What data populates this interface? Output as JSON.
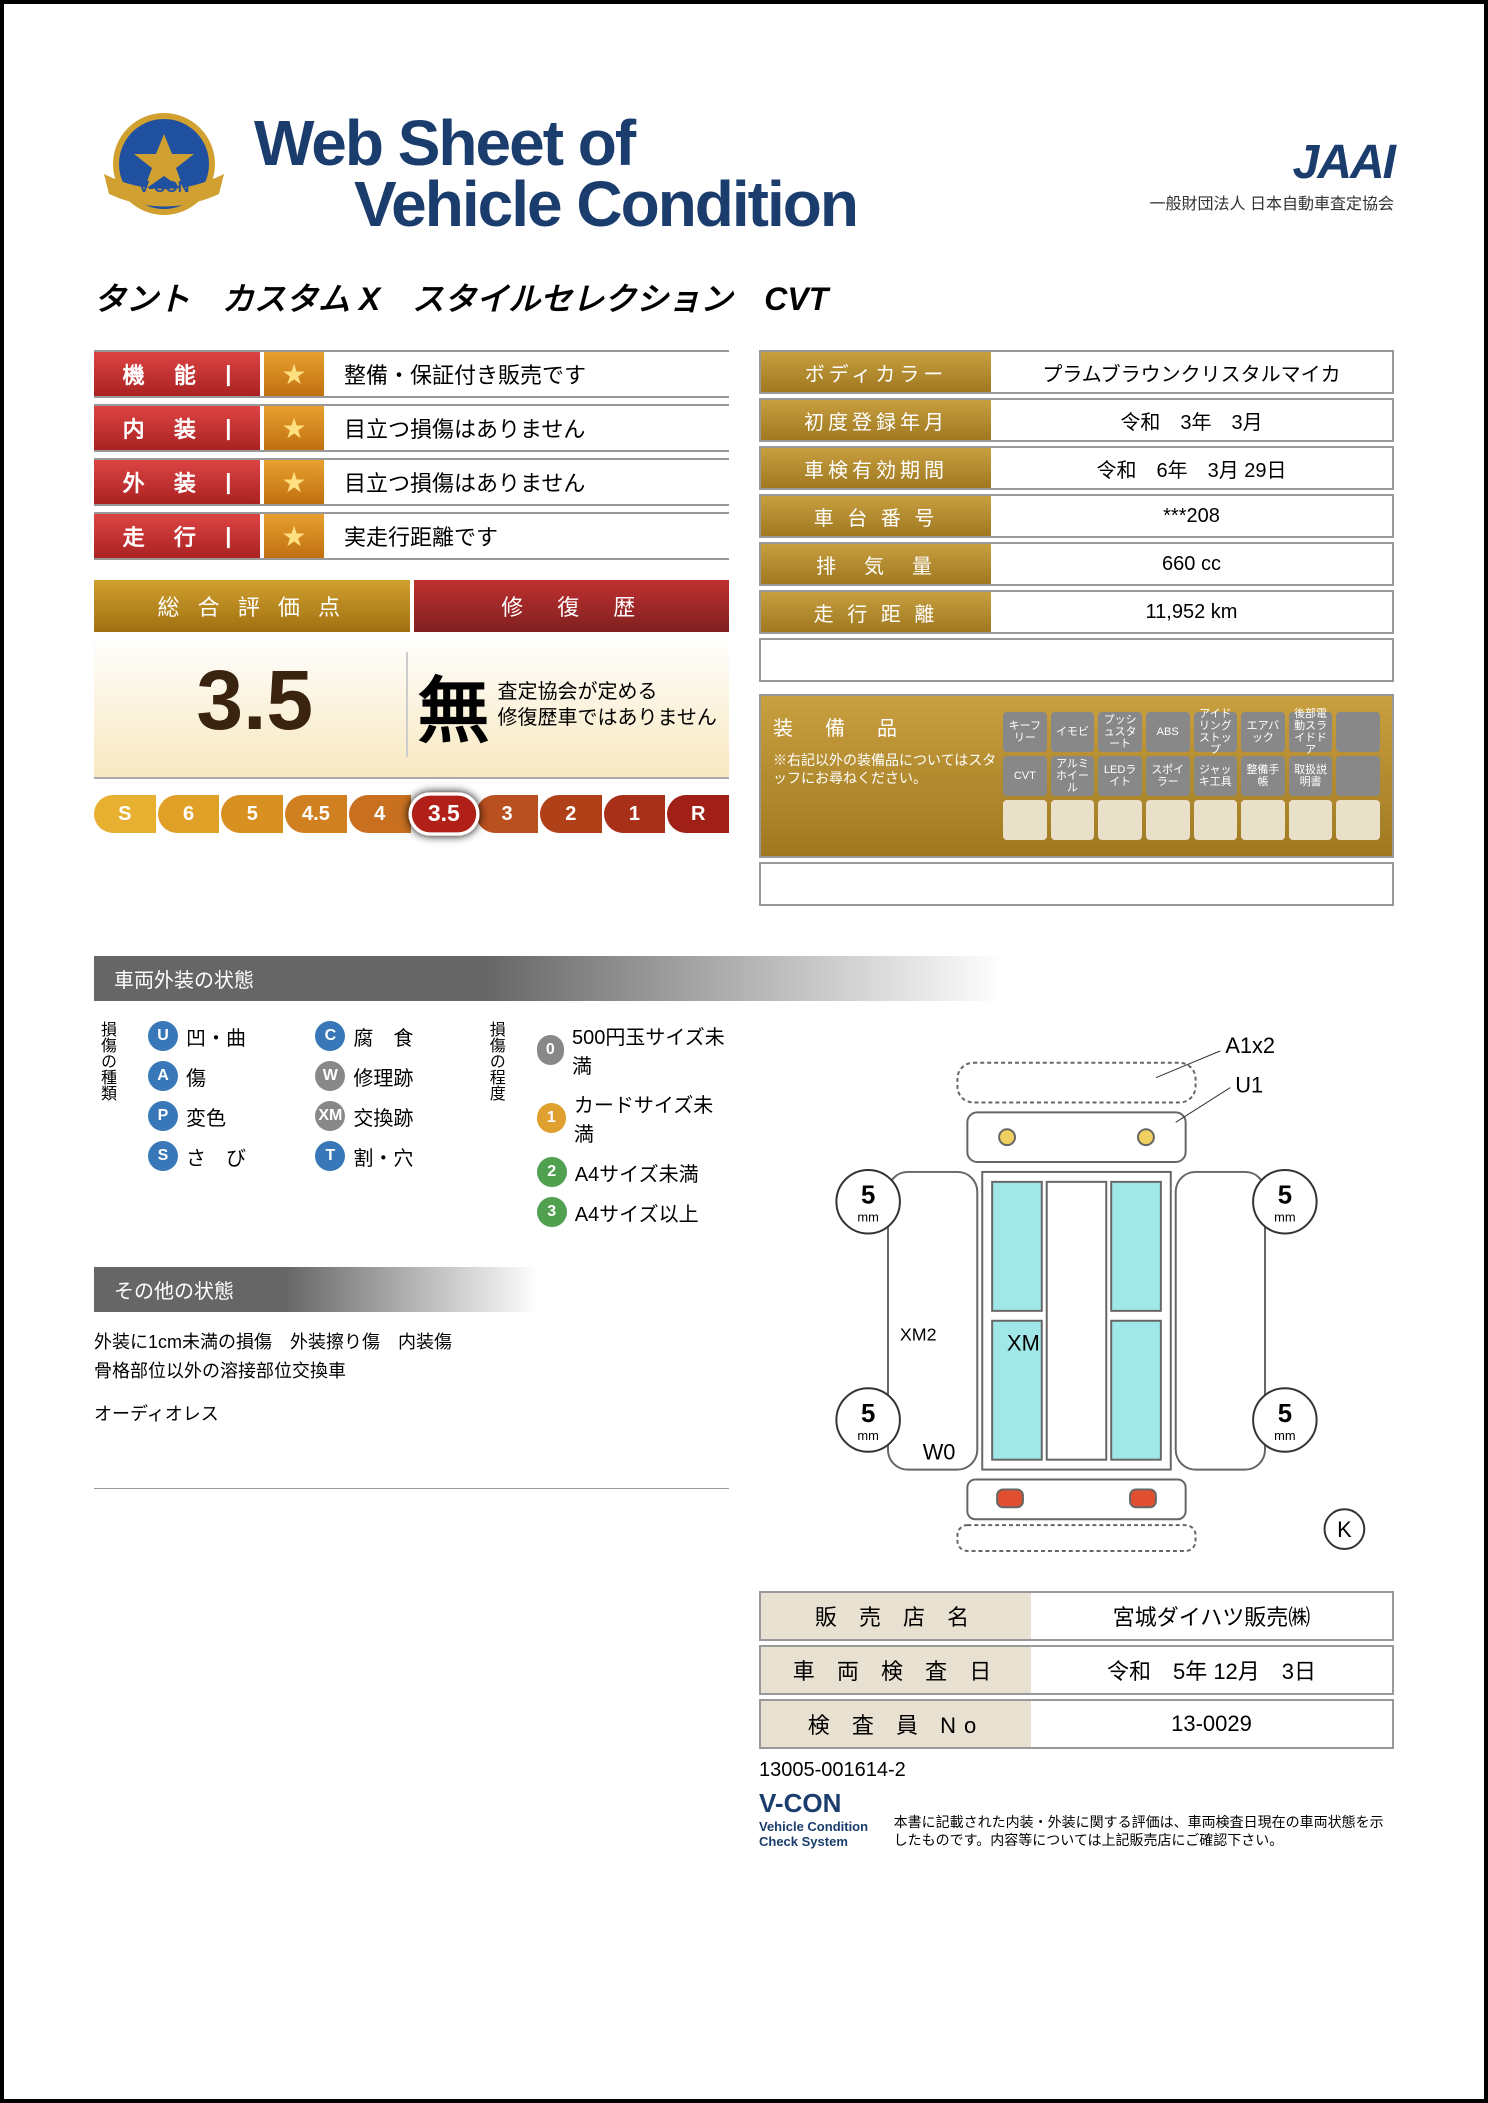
{
  "header": {
    "title_line1": "Web Sheet of",
    "title_line2": "Vehicle Condition",
    "jaai": "JAAI",
    "jaai_sub": "一般財団法人 日本自動車査定協会",
    "badge_text": "V-CON"
  },
  "vehicle_name": "タント　カスタム X　スタイルセレクション　CVT",
  "ratings": [
    {
      "label1": "機",
      "label2": "能",
      "text": "整備・保証付き販売です"
    },
    {
      "label1": "内",
      "label2": "装",
      "text": "目立つ損傷はありません"
    },
    {
      "label1": "外",
      "label2": "装",
      "text": "目立つ損傷はありません"
    },
    {
      "label1": "走",
      "label2": "行",
      "text": "実走行距離です"
    }
  ],
  "eval": {
    "h1": "総 合 評 価 点",
    "h2": "修　復　歴",
    "score": "3.5",
    "mu": "無",
    "text1": "査定協会が定める",
    "text2": "修復歴車ではありません"
  },
  "scale": [
    {
      "v": "S",
      "c": "#e8b030"
    },
    {
      "v": "6",
      "c": "#e0a028"
    },
    {
      "v": "5",
      "c": "#d89020"
    },
    {
      "v": "4.5",
      "c": "#d08020"
    },
    {
      "v": "4",
      "c": "#c87020"
    },
    {
      "v": "3.5",
      "c": "#b02018",
      "active": true
    },
    {
      "v": "3",
      "c": "#b85020"
    },
    {
      "v": "2",
      "c": "#b04018"
    },
    {
      "v": "1",
      "c": "#a83018"
    },
    {
      "v": "R",
      "c": "#a02018"
    }
  ],
  "specs": [
    {
      "label": "ボディカラー",
      "value": "プラムブラウンクリスタルマイカ"
    },
    {
      "label": "初度登録年月",
      "value": "令和　3年　3月"
    },
    {
      "label": "車検有効期間",
      "value": "令和　6年　3月 29日"
    },
    {
      "label": "車 台 番 号",
      "value": "***208"
    },
    {
      "label": "排　気　量",
      "value": "660 cc"
    },
    {
      "label": "走 行 距 離",
      "value": "11,952 km"
    }
  ],
  "equipment": {
    "title": "装　備　品",
    "note": "※右記以外の装備品についてはスタッフにお尋ねください。",
    "chips_row1": [
      "キーフリー",
      "イモビ",
      "プッシュスタート",
      "ABS",
      "アイドリングストップ",
      "エアバック",
      "後部電動スライドドア"
    ],
    "chips_row2": [
      "CVT",
      "アルミホイール",
      "LEDライト",
      "スポイラー",
      "ジャッキ工具",
      "整備手帳",
      "取扱説明書"
    ]
  },
  "exterior_section": "車両外装の状態",
  "legend_types_title": "損傷の種類",
  "legend_types": [
    {
      "b": "U",
      "c": "#3878b8",
      "t": "凹・曲"
    },
    {
      "b": "A",
      "c": "#3878b8",
      "t": "傷"
    },
    {
      "b": "P",
      "c": "#3878b8",
      "t": "変色"
    },
    {
      "b": "S",
      "c": "#3878b8",
      "t": "さ　び"
    },
    {
      "b": "C",
      "c": "#3878b8",
      "t": "腐　食"
    },
    {
      "b": "W",
      "c": "#888888",
      "t": "修理跡"
    },
    {
      "b": "XM",
      "c": "#888888",
      "t": "交換跡"
    },
    {
      "b": "T",
      "c": "#3878b8",
      "t": "割・穴"
    }
  ],
  "legend_degree_title": "損傷の程度",
  "legend_degree": [
    {
      "b": "0",
      "c": "#888888",
      "t": "500円玉サイズ未満"
    },
    {
      "b": "1",
      "c": "#e0a030",
      "t": "カードサイズ未満"
    },
    {
      "b": "2",
      "c": "#50a050",
      "t": "A4サイズ未満"
    },
    {
      "b": "3",
      "c": "#50a050",
      "t": "A4サイズ以上"
    }
  ],
  "other_section": "その他の状態",
  "other_text1": "外装に1cm未満の損傷　外装擦り傷　内装傷",
  "other_text2": "骨格部位以外の溶接部位交換車",
  "other_text3": "オーディオレス",
  "diagram": {
    "labels": {
      "a1x2": "A1x2",
      "u1": "U1",
      "xm2": "XM2",
      "xm": "XM",
      "w0": "W0",
      "k": "K"
    },
    "wheel": "5",
    "wheel_sub": "mm"
  },
  "footer": [
    {
      "label": "販 売 店 名",
      "value": "宮城ダイハツ販売㈱"
    },
    {
      "label": "車 両 検 査 日",
      "value": "令和　5年 12月　3日"
    },
    {
      "label": "検 査 員 No",
      "value": "13-0029"
    }
  ],
  "doc_id": "13005-001614-2",
  "vcon": "V-CON",
  "vcon_sub": "Vehicle Condition Check System",
  "disclaimer": "本書に記載された内装・外装に関する評価は、車両検査日現在の車両状態を示したものです。内容等については上記販売店にご確認下さい。"
}
